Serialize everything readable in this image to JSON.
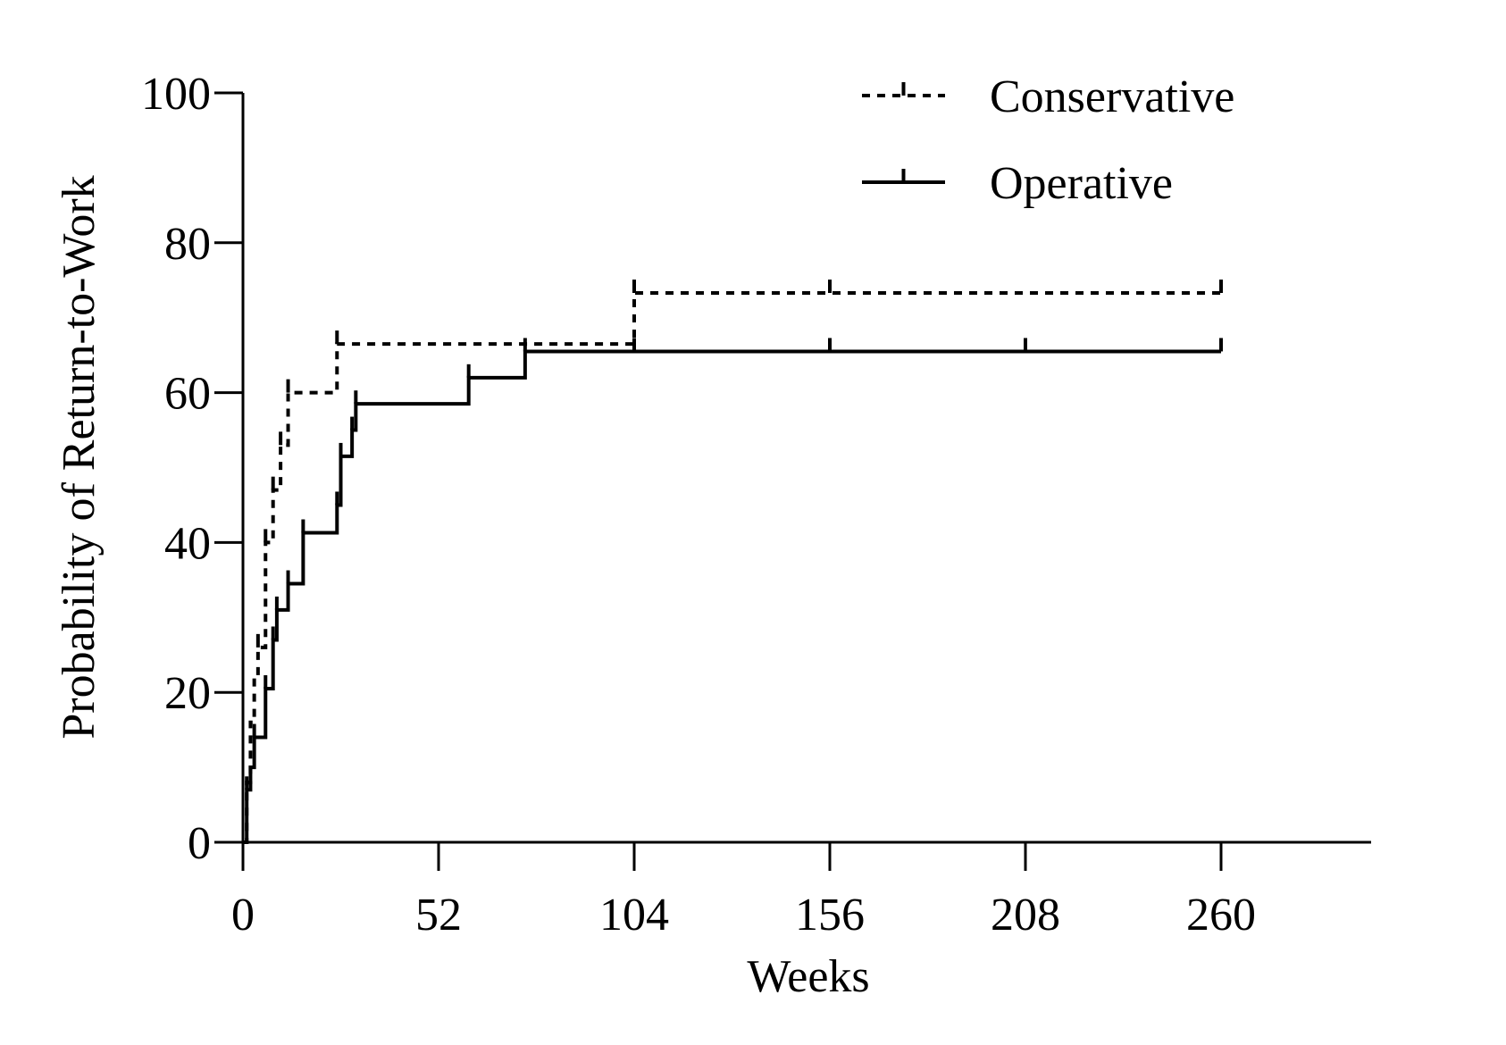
{
  "chart_data": {
    "type": "line",
    "title": "",
    "xlabel": "Weeks",
    "ylabel": "Probability of Return-to-Work",
    "xlim": [
      0,
      300
    ],
    "ylim": [
      0,
      100
    ],
    "x_ticks": [
      "0",
      "52",
      "104",
      "156",
      "208",
      "260"
    ],
    "x_tick_values": [
      0,
      52,
      104,
      156,
      208,
      260
    ],
    "y_ticks": [
      "0",
      "20",
      "40",
      "60",
      "80",
      "100"
    ],
    "y_tick_values": [
      0,
      20,
      40,
      60,
      80,
      100
    ],
    "legend_position": "top-right",
    "line_color": "#000000",
    "series": [
      {
        "name": "Conservative",
        "style": "dashed",
        "steps": [
          [
            0,
            0
          ],
          [
            1,
            8
          ],
          [
            2,
            16
          ],
          [
            3,
            22
          ],
          [
            4,
            26
          ],
          [
            6,
            40
          ],
          [
            8,
            47
          ],
          [
            10,
            53
          ],
          [
            12,
            60
          ],
          [
            25,
            66.5
          ],
          [
            104,
            73.3
          ]
        ],
        "end_x": 260,
        "censored": [
          [
            4,
            26
          ],
          [
            6,
            40
          ],
          [
            8,
            47
          ],
          [
            10,
            53
          ],
          [
            12,
            60
          ],
          [
            25,
            66.5
          ],
          [
            104,
            73.3
          ],
          [
            156,
            73.3
          ],
          [
            260,
            73.3
          ]
        ]
      },
      {
        "name": "Operative",
        "style": "solid",
        "steps": [
          [
            0,
            0
          ],
          [
            1,
            7
          ],
          [
            2,
            10
          ],
          [
            3,
            14
          ],
          [
            6,
            20.5
          ],
          [
            8,
            27
          ],
          [
            9,
            31
          ],
          [
            12,
            34.5
          ],
          [
            16,
            41.3
          ],
          [
            25,
            45
          ],
          [
            26,
            51.5
          ],
          [
            29,
            55
          ],
          [
            30,
            58.5
          ],
          [
            60,
            62
          ],
          [
            75,
            65.5
          ]
        ],
        "end_x": 260,
        "censored": [
          [
            1,
            7
          ],
          [
            3,
            14
          ],
          [
            6,
            20.5
          ],
          [
            8,
            27
          ],
          [
            9,
            31
          ],
          [
            12,
            34.5
          ],
          [
            16,
            41.3
          ],
          [
            25,
            45
          ],
          [
            26,
            51.5
          ],
          [
            29,
            55
          ],
          [
            30,
            58.5
          ],
          [
            60,
            62
          ],
          [
            75,
            65.5
          ],
          [
            104,
            65.5
          ],
          [
            156,
            65.5
          ],
          [
            208,
            65.5
          ],
          [
            260,
            65.5
          ]
        ]
      }
    ]
  }
}
